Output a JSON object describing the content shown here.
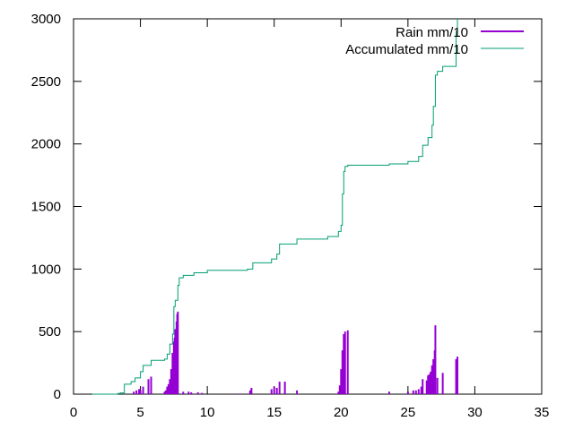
{
  "chart_data": {
    "type": "line",
    "title": "",
    "xlabel": "",
    "ylabel": "",
    "xlim": [
      0,
      35
    ],
    "ylim": [
      0,
      3000
    ],
    "x_ticks": [
      0,
      5,
      10,
      15,
      20,
      25,
      30,
      35
    ],
    "y_ticks": [
      0,
      500,
      1000,
      1500,
      2000,
      2500,
      3000
    ],
    "grid": false,
    "legend_position": "top-right",
    "series": [
      {
        "name": "Rain mm/10",
        "style": "impulses",
        "color": "#9400d3",
        "points": [
          [
            3.4,
            5
          ],
          [
            4.5,
            20
          ],
          [
            4.7,
            30
          ],
          [
            4.9,
            40
          ],
          [
            5.0,
            30
          ],
          [
            5.2,
            60
          ],
          [
            5.6,
            120
          ],
          [
            5.8,
            140
          ],
          [
            6.8,
            20
          ],
          [
            6.9,
            30
          ],
          [
            7.0,
            60
          ],
          [
            7.1,
            80
          ],
          [
            7.2,
            120
          ],
          [
            7.3,
            200
          ],
          [
            7.4,
            330
          ],
          [
            7.5,
            420
          ],
          [
            7.55,
            450
          ],
          [
            7.6,
            520
          ],
          [
            7.7,
            580
          ],
          [
            7.75,
            640
          ],
          [
            7.8,
            660
          ],
          [
            8.2,
            20
          ],
          [
            8.6,
            20
          ],
          [
            8.8,
            15
          ],
          [
            9.3,
            15
          ],
          [
            9.6,
            10
          ],
          [
            12.0,
            5
          ],
          [
            12.5,
            5
          ],
          [
            13.2,
            30
          ],
          [
            13.3,
            50
          ],
          [
            14.8,
            40
          ],
          [
            15.0,
            60
          ],
          [
            15.2,
            50
          ],
          [
            15.4,
            100
          ],
          [
            15.8,
            100
          ],
          [
            16.7,
            30
          ],
          [
            19.8,
            20
          ],
          [
            19.9,
            70
          ],
          [
            20.0,
            200
          ],
          [
            20.1,
            350
          ],
          [
            20.2,
            480
          ],
          [
            20.3,
            500
          ],
          [
            20.5,
            510
          ],
          [
            23.6,
            20
          ],
          [
            25.0,
            20
          ],
          [
            25.4,
            30
          ],
          [
            25.6,
            30
          ],
          [
            25.8,
            40
          ],
          [
            26.0,
            60
          ],
          [
            26.1,
            120
          ],
          [
            26.4,
            110
          ],
          [
            26.5,
            150
          ],
          [
            26.6,
            160
          ],
          [
            26.7,
            180
          ],
          [
            26.8,
            230
          ],
          [
            26.9,
            280
          ],
          [
            27.0,
            350
          ],
          [
            27.05,
            550
          ],
          [
            27.2,
            130
          ],
          [
            27.6,
            170
          ],
          [
            28.6,
            280
          ],
          [
            28.7,
            300
          ]
        ]
      },
      {
        "name": "Accumulated mm/10",
        "style": "steps",
        "color": "#009e73",
        "points": [
          [
            1.4,
            0
          ],
          [
            3.3,
            5
          ],
          [
            3.5,
            10
          ],
          [
            3.8,
            80
          ],
          [
            4.3,
            100
          ],
          [
            4.6,
            130
          ],
          [
            5.0,
            180
          ],
          [
            5.2,
            230
          ],
          [
            5.8,
            270
          ],
          [
            6.8,
            280
          ],
          [
            7.0,
            320
          ],
          [
            7.2,
            400
          ],
          [
            7.4,
            480
          ],
          [
            7.5,
            700
          ],
          [
            7.6,
            750
          ],
          [
            7.8,
            870
          ],
          [
            7.9,
            930
          ],
          [
            8.2,
            950
          ],
          [
            9.0,
            970
          ],
          [
            10.0,
            990
          ],
          [
            13.0,
            1000
          ],
          [
            13.4,
            1050
          ],
          [
            14.8,
            1080
          ],
          [
            15.2,
            1120
          ],
          [
            15.4,
            1200
          ],
          [
            16.7,
            1240
          ],
          [
            19.0,
            1260
          ],
          [
            19.8,
            1300
          ],
          [
            20.0,
            1350
          ],
          [
            20.1,
            1600
          ],
          [
            20.2,
            1780
          ],
          [
            20.3,
            1820
          ],
          [
            20.5,
            1830
          ],
          [
            23.6,
            1840
          ],
          [
            25.0,
            1860
          ],
          [
            25.8,
            1900
          ],
          [
            26.1,
            1990
          ],
          [
            26.5,
            2050
          ],
          [
            26.8,
            2150
          ],
          [
            26.9,
            2300
          ],
          [
            27.05,
            2550
          ],
          [
            27.2,
            2580
          ],
          [
            27.6,
            2620
          ],
          [
            28.6,
            2900
          ],
          [
            28.7,
            3000
          ]
        ]
      }
    ]
  }
}
